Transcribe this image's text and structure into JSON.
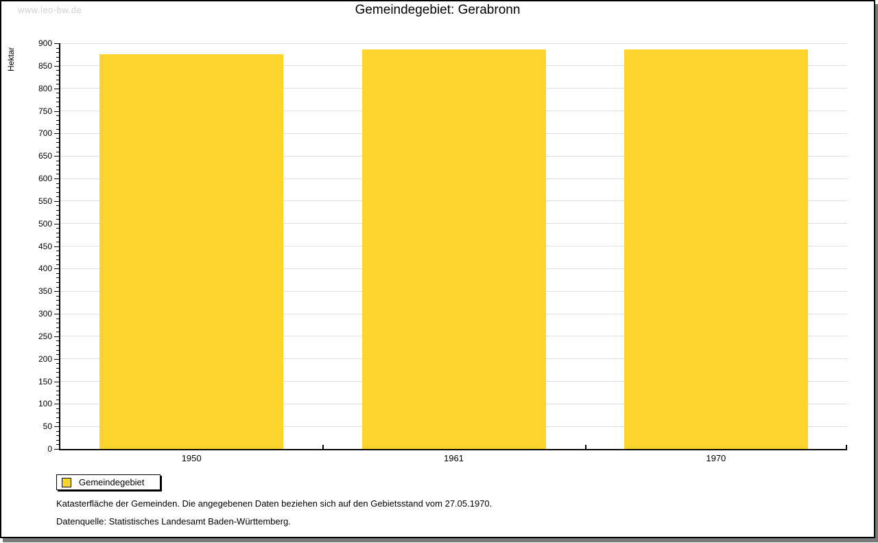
{
  "watermark": "www.leo-bw.de",
  "title": "Gemeindegebiet: Gerabronn",
  "legend": {
    "label": "Gemeindegebiet"
  },
  "footer": {
    "line1": "Katasterfläche der Gemeinden. Die angegebenen Daten beziehen sich auf den Gebietsstand vom 27.05.1970.",
    "line2": "Datenquelle: Statistisches Landesamt Baden-Württemberg."
  },
  "colors": {
    "bar": "#FDD32E",
    "grid": "#dddddd",
    "axis": "#000000",
    "watermark": "#d0d0d0",
    "shadow": "#7a7a7a"
  },
  "chart_data": {
    "type": "bar",
    "title": "Gemeindegebiet: Gerabronn",
    "categories": [
      "1950",
      "1961",
      "1970"
    ],
    "series": [
      {
        "name": "Gemeindegebiet",
        "values": [
          876,
          887,
          887
        ]
      }
    ],
    "xlabel": "",
    "ylabel": "Hektar",
    "ylim": [
      0,
      900
    ],
    "ytick_major": 50,
    "ytick_minor": 10,
    "grid": true,
    "legend_position": "bottom-left"
  }
}
